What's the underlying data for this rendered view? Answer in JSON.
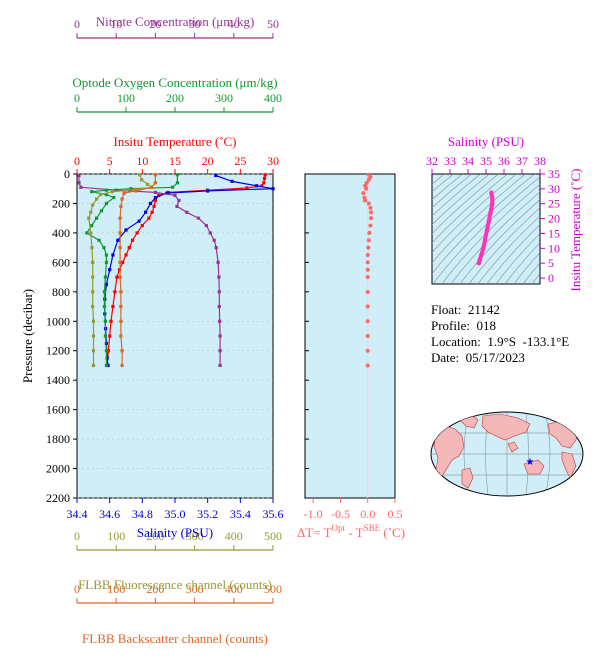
{
  "float_info": {
    "float_line": "Float:  21142",
    "profile_line": "Profile:  018",
    "location_line": "Location:  1.9°S  -133.1°E",
    "date_line": "Date:  05/17/2023"
  },
  "colors": {
    "nitrate": "#993399",
    "oxygen": "#119933",
    "temperature": "#ff0000",
    "salinity": "#0000dd",
    "fluorescence": "#999933",
    "backscatter": "#dd6622",
    "delta_t": "#ff6666",
    "ts": "#ff33bb",
    "panel_bg": "#cfeef7",
    "land": "#f4b8b8",
    "float_marker": "#0000ff"
  },
  "chart_data": [
    {
      "type": "line",
      "panel": "profile",
      "ylabel": "Pressure (decibar)",
      "yticks": [
        0,
        200,
        400,
        600,
        800,
        1000,
        1200,
        1400,
        1600,
        1800,
        2000,
        2200
      ],
      "ylim": [
        2200,
        0
      ],
      "axes": [
        {
          "key": "nitrate",
          "label": "Nitrate Concentration (μm/kg)",
          "ticks": [
            0,
            10,
            20,
            30,
            40,
            50
          ],
          "lim": [
            0,
            50
          ]
        },
        {
          "key": "oxygen",
          "label": "Optode Oxygen Concentration (μm/kg)",
          "ticks": [
            0,
            100,
            200,
            300,
            400
          ],
          "lim": [
            0,
            400
          ]
        },
        {
          "key": "temperature",
          "label": "Insitu Temperature (˚C)",
          "ticks": [
            0,
            5,
            10,
            15,
            20,
            25,
            30
          ],
          "lim": [
            0,
            30
          ]
        },
        {
          "key": "salinity",
          "label": "Salinity (PSU)",
          "ticks": [
            "34.4",
            "34.6",
            "34.8",
            "35.0",
            "35.2",
            "35.4",
            "35.6"
          ],
          "lim": [
            34.4,
            35.6
          ]
        },
        {
          "key": "fluorescence",
          "label": "FLBB Fluorescence channel (counts)",
          "ticks": [
            0,
            100,
            200,
            300,
            400,
            500
          ],
          "lim": [
            0,
            500
          ]
        },
        {
          "key": "backscatter",
          "label": "FLBB Backscatter channel (counts)",
          "ticks": [
            0,
            100,
            200,
            300,
            400,
            500
          ],
          "lim": [
            0,
            500
          ]
        }
      ],
      "series": [
        {
          "key": "temperature",
          "points": [
            [
              28.8,
              5
            ],
            [
              28.7,
              30
            ],
            [
              28.6,
              60
            ],
            [
              28.3,
              80
            ],
            [
              26,
              95
            ],
            [
              20,
              110
            ],
            [
              14,
              125
            ],
            [
              12.5,
              145
            ],
            [
              12,
              180
            ],
            [
              11.8,
              220
            ],
            [
              11.5,
              260
            ],
            [
              11,
              300
            ],
            [
              10,
              350
            ],
            [
              9.2,
              400
            ],
            [
              8.5,
              450
            ],
            [
              8,
              500
            ],
            [
              7.5,
              550
            ],
            [
              7,
              600
            ],
            [
              6.5,
              650
            ],
            [
              6.1,
              700
            ],
            [
              5.8,
              800
            ],
            [
              5.5,
              900
            ],
            [
              5.2,
              1000
            ],
            [
              5,
              1100
            ],
            [
              4.8,
              1200
            ],
            [
              4.6,
              1300
            ]
          ]
        },
        {
          "key": "salinity",
          "points": [
            [
              35.25,
              10
            ],
            [
              35.35,
              50
            ],
            [
              35.5,
              80
            ],
            [
              35.6,
              100
            ],
            [
              35.2,
              115
            ],
            [
              34.95,
              130
            ],
            [
              34.88,
              160
            ],
            [
              34.85,
              200
            ],
            [
              34.82,
              260
            ],
            [
              34.78,
              320
            ],
            [
              34.7,
              380
            ],
            [
              34.65,
              450
            ],
            [
              34.62,
              550
            ],
            [
              34.6,
              650
            ],
            [
              34.58,
              750
            ],
            [
              34.57,
              850
            ],
            [
              34.57,
              950
            ],
            [
              34.575,
              1050
            ],
            [
              34.58,
              1150
            ],
            [
              34.585,
              1250
            ],
            [
              34.59,
              1300
            ]
          ]
        },
        {
          "key": "nitrate",
          "points": [
            [
              0.5,
              10
            ],
            [
              0.5,
              60
            ],
            [
              1,
              90
            ],
            [
              10,
              110
            ],
            [
              20,
              125
            ],
            [
              25,
              145
            ],
            [
              26,
              180
            ],
            [
              25.5,
              220
            ],
            [
              28,
              260
            ],
            [
              31,
              300
            ],
            [
              33,
              350
            ],
            [
              34,
              400
            ],
            [
              35,
              450
            ],
            [
              35.5,
              500
            ],
            [
              36,
              600
            ],
            [
              36.2,
              700
            ],
            [
              36.3,
              800
            ],
            [
              36.3,
              900
            ],
            [
              36.4,
              1000
            ],
            [
              36.5,
              1100
            ],
            [
              36.5,
              1200
            ],
            [
              36.5,
              1300
            ]
          ]
        },
        {
          "key": "oxygen",
          "points": [
            [
              205,
              5
            ],
            [
              205,
              60
            ],
            [
              195,
              90
            ],
            [
              110,
              100
            ],
            [
              60,
              110
            ],
            [
              30,
              120
            ],
            [
              60,
              140
            ],
            [
              75,
              160
            ],
            [
              60,
              200
            ],
            [
              50,
              250
            ],
            [
              40,
              300
            ],
            [
              30,
              350
            ],
            [
              20,
              400
            ],
            [
              45,
              450
            ],
            [
              55,
              500
            ],
            [
              60,
              550
            ],
            [
              60,
              600
            ],
            [
              58,
              700
            ],
            [
              56,
              800
            ],
            [
              56,
              900
            ],
            [
              58,
              1000
            ],
            [
              58,
              1100
            ],
            [
              60,
              1200
            ],
            [
              60,
              1300
            ]
          ]
        },
        {
          "key": "fluorescence",
          "points": [
            [
              160,
              5
            ],
            [
              165,
              40
            ],
            [
              180,
              70
            ],
            [
              190,
              90
            ],
            [
              150,
              105
            ],
            [
              90,
              120
            ],
            [
              60,
              140
            ],
            [
              50,
              170
            ],
            [
              40,
              210
            ],
            [
              35,
              260
            ],
            [
              30,
              300
            ],
            [
              35,
              400
            ],
            [
              38,
              500
            ],
            [
              40,
              600
            ],
            [
              40,
              700
            ],
            [
              40,
              800
            ],
            [
              40,
              900
            ],
            [
              42,
              1000
            ],
            [
              42,
              1100
            ],
            [
              42,
              1200
            ],
            [
              42,
              1300
            ]
          ]
        },
        {
          "key": "backscatter",
          "points": [
            [
              200,
              5
            ],
            [
              200,
              60
            ],
            [
              190,
              90
            ],
            [
              150,
              115
            ],
            [
              120,
              130
            ],
            [
              115,
              170
            ],
            [
              112,
              220
            ],
            [
              110,
              300
            ],
            [
              110,
              400
            ],
            [
              110,
              500
            ],
            [
              110,
              600
            ],
            [
              110,
              700
            ],
            [
              112,
              800
            ],
            [
              112,
              900
            ],
            [
              112,
              1000
            ],
            [
              112,
              1100
            ],
            [
              115,
              1200
            ],
            [
              115,
              1300
            ]
          ]
        }
      ]
    },
    {
      "type": "scatter",
      "panel": "delta_t",
      "xlabel": "ΔT= T^Opt - T^SBE (˚C)",
      "xlabel_main": "ΔT= T",
      "xlabel_sup1": "Opt",
      "xlabel_mid": " - T",
      "xlabel_sup2": "SBE",
      "xlabel_end": " (˚C)",
      "xticks": [
        "-1.0",
        "-0.5",
        "0.0",
        "0.5"
      ],
      "xlim": [
        -1.15,
        0.5
      ],
      "ylim": [
        2200,
        0
      ],
      "points": [
        [
          0.02,
          5
        ],
        [
          0.05,
          20
        ],
        [
          0.02,
          40
        ],
        [
          -0.02,
          60
        ],
        [
          -0.05,
          80
        ],
        [
          -0.03,
          100
        ],
        [
          -0.08,
          130
        ],
        [
          -0.06,
          160
        ],
        [
          -0.05,
          180
        ],
        [
          0.02,
          200
        ],
        [
          0.05,
          230
        ],
        [
          0.06,
          260
        ],
        [
          0.06,
          300
        ],
        [
          0.05,
          350
        ],
        [
          0.03,
          400
        ],
        [
          0.02,
          450
        ],
        [
          0.01,
          500
        ],
        [
          0.0,
          550
        ],
        [
          0.0,
          600
        ],
        [
          0.0,
          650
        ],
        [
          0.0,
          700
        ],
        [
          0.0,
          800
        ],
        [
          0.0,
          900
        ],
        [
          0.0,
          1000
        ],
        [
          0.0,
          1100
        ],
        [
          0.0,
          1200
        ],
        [
          0.0,
          1300
        ]
      ]
    },
    {
      "type": "line",
      "panel": "ts",
      "title": "Salinity (PSU)",
      "ylabel": "Insitu Temperature (˚C)",
      "xticks": [
        32,
        33,
        34,
        35,
        36,
        37,
        38
      ],
      "xlim": [
        32,
        38
      ],
      "yticks": [
        0,
        5,
        10,
        15,
        20,
        25,
        30,
        35
      ],
      "ylim": [
        -2,
        35
      ],
      "points": [
        [
          35.3,
          28.7
        ],
        [
          35.35,
          27
        ],
        [
          35.35,
          25
        ],
        [
          35.25,
          22
        ],
        [
          35.15,
          19
        ],
        [
          35.05,
          16
        ],
        [
          34.95,
          13
        ],
        [
          34.85,
          10
        ],
        [
          34.75,
          8
        ],
        [
          34.65,
          6
        ],
        [
          34.6,
          5
        ]
      ]
    }
  ]
}
